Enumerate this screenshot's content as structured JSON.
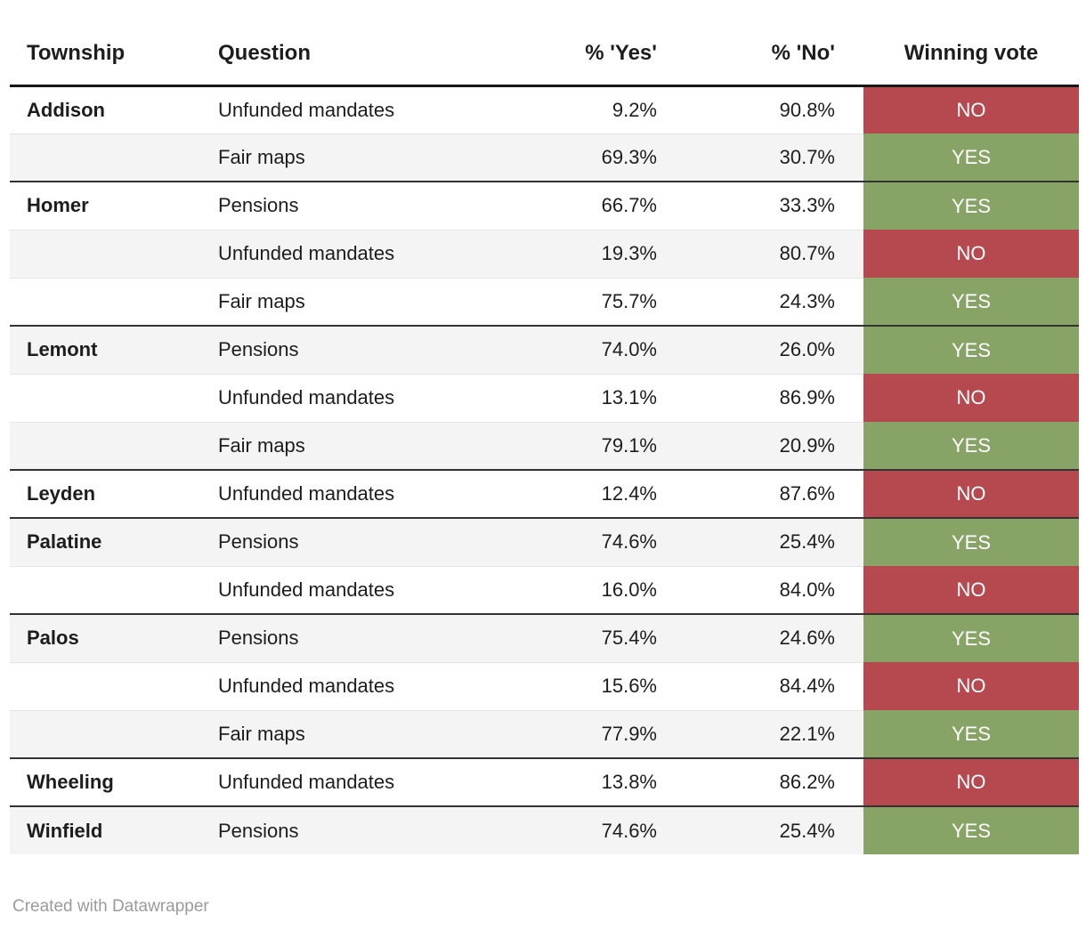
{
  "header": {
    "columns": [
      {
        "id": "township",
        "label": "Township"
      },
      {
        "id": "question",
        "label": "Question"
      },
      {
        "id": "yes",
        "label": "% 'Yes'"
      },
      {
        "id": "no",
        "label": "% 'No'"
      },
      {
        "id": "winner",
        "label": "Winning vote"
      }
    ]
  },
  "chart_data": {
    "type": "table",
    "columns": [
      "Township",
      "Question",
      "% 'Yes'",
      "% 'No'",
      "Winning vote"
    ],
    "rows": [
      {
        "township": "Addison",
        "question": "Unfunded mandates",
        "yes_pct": "9.2%",
        "no_pct": "90.8%",
        "winning_vote": "NO",
        "group_start": true
      },
      {
        "township": "",
        "question": "Fair maps",
        "yes_pct": "69.3%",
        "no_pct": "30.7%",
        "winning_vote": "YES",
        "group_start": false
      },
      {
        "township": "Homer",
        "question": "Pensions",
        "yes_pct": "66.7%",
        "no_pct": "33.3%",
        "winning_vote": "YES",
        "group_start": true
      },
      {
        "township": "",
        "question": "Unfunded mandates",
        "yes_pct": "19.3%",
        "no_pct": "80.7%",
        "winning_vote": "NO",
        "group_start": false
      },
      {
        "township": "",
        "question": "Fair maps",
        "yes_pct": "75.7%",
        "no_pct": "24.3%",
        "winning_vote": "YES",
        "group_start": false
      },
      {
        "township": "Lemont",
        "question": "Pensions",
        "yes_pct": "74.0%",
        "no_pct": "26.0%",
        "winning_vote": "YES",
        "group_start": true
      },
      {
        "township": "",
        "question": "Unfunded mandates",
        "yes_pct": "13.1%",
        "no_pct": "86.9%",
        "winning_vote": "NO",
        "group_start": false
      },
      {
        "township": "",
        "question": "Fair maps",
        "yes_pct": "79.1%",
        "no_pct": "20.9%",
        "winning_vote": "YES",
        "group_start": false
      },
      {
        "township": "Leyden",
        "question": "Unfunded mandates",
        "yes_pct": "12.4%",
        "no_pct": "87.6%",
        "winning_vote": "NO",
        "group_start": true
      },
      {
        "township": "Palatine",
        "question": "Pensions",
        "yes_pct": "74.6%",
        "no_pct": "25.4%",
        "winning_vote": "YES",
        "group_start": true
      },
      {
        "township": "",
        "question": "Unfunded mandates",
        "yes_pct": "16.0%",
        "no_pct": "84.0%",
        "winning_vote": "NO",
        "group_start": false
      },
      {
        "township": "Palos",
        "question": "Pensions",
        "yes_pct": "75.4%",
        "no_pct": "24.6%",
        "winning_vote": "YES",
        "group_start": true
      },
      {
        "township": "",
        "question": "Unfunded mandates",
        "yes_pct": "15.6%",
        "no_pct": "84.4%",
        "winning_vote": "NO",
        "group_start": false
      },
      {
        "township": "",
        "question": "Fair maps",
        "yes_pct": "77.9%",
        "no_pct": "22.1%",
        "winning_vote": "YES",
        "group_start": false
      },
      {
        "township": "Wheeling",
        "question": "Unfunded mandates",
        "yes_pct": "13.8%",
        "no_pct": "86.2%",
        "winning_vote": "NO",
        "group_start": true
      },
      {
        "township": "Winfield",
        "question": "Pensions",
        "yes_pct": "74.6%",
        "no_pct": "25.4%",
        "winning_vote": "YES",
        "group_start": true
      }
    ]
  },
  "colors": {
    "yes_bg": "#87a466",
    "no_bg": "#b5494f",
    "winner_text": "#ffffff",
    "stripe": "#f4f4f4",
    "row_border": "#e4e4e4",
    "group_border": "#333333",
    "header_border": "#161616",
    "text": "#1d1d1d",
    "footer_text": "#9b9b9b"
  },
  "footer": {
    "credit": "Created with Datawrapper"
  }
}
